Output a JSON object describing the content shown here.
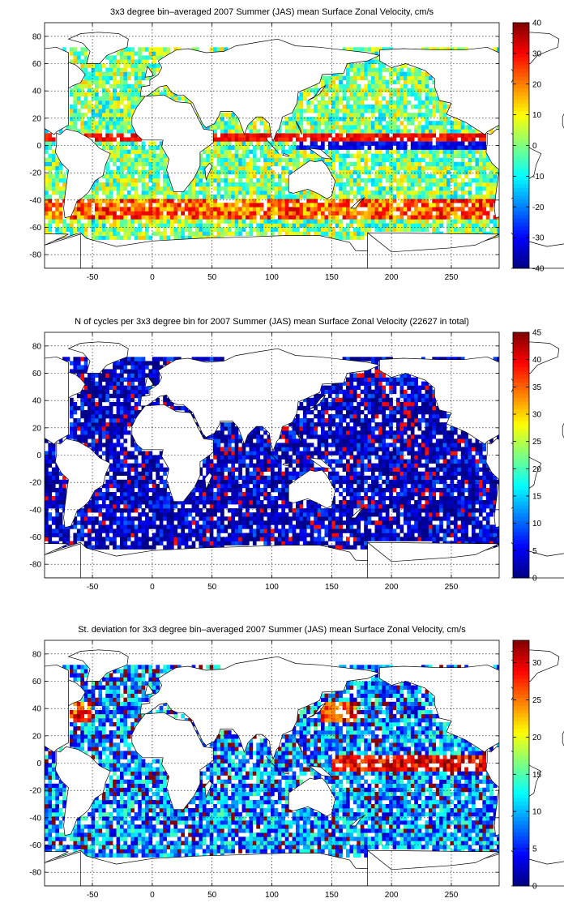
{
  "figure": {
    "colors": {
      "background": "#ffffff",
      "land": "#ffffff",
      "coastline": "#000000"
    },
    "colormap": "jet"
  },
  "chart_data": [
    {
      "type": "heatmap",
      "id": "mean",
      "title": "3x3 degree bin–averaged 2007 Summer (JAS) mean Surface Zonal Velocity, cm/s",
      "x_ticks": [
        -50,
        0,
        50,
        100,
        150,
        200,
        250
      ],
      "y_ticks": [
        80,
        60,
        40,
        20,
        0,
        -20,
        -40,
        -60,
        -80
      ],
      "xlim": [
        -90,
        290
      ],
      "ylim": [
        -90,
        90
      ],
      "bin_size_deg": 3,
      "grid": true,
      "colorbar": {
        "min": -40,
        "max": 40,
        "ticks": [
          40,
          30,
          20,
          10,
          0,
          -10,
          -20,
          -30,
          -40
        ],
        "position": "right"
      }
    },
    {
      "type": "heatmap",
      "id": "count",
      "title": "N of cycles per 3x3 degree bin for 2007 Summer (JAS) mean Surface Zonal Velocity (22627 in total)",
      "x_ticks": [
        -50,
        0,
        50,
        100,
        150,
        200,
        250
      ],
      "y_ticks": [
        80,
        60,
        40,
        20,
        0,
        -20,
        -40,
        -60,
        -80
      ],
      "xlim": [
        -90,
        290
      ],
      "ylim": [
        -90,
        90
      ],
      "bin_size_deg": 3,
      "grid": true,
      "colorbar": {
        "min": 0,
        "max": 45,
        "ticks": [
          45,
          40,
          35,
          30,
          25,
          20,
          15,
          10,
          5,
          0
        ],
        "position": "right"
      }
    },
    {
      "type": "heatmap",
      "id": "stdev",
      "title": "St. deviation for 3x3 degree bin–averaged 2007 Summer (JAS) mean Surface Zonal Velocity, cm/s",
      "x_ticks": [
        -50,
        0,
        50,
        100,
        150,
        200,
        250
      ],
      "y_ticks": [
        80,
        60,
        40,
        20,
        0,
        -20,
        -40,
        -60,
        -80
      ],
      "xlim": [
        -90,
        290
      ],
      "ylim": [
        -90,
        90
      ],
      "bin_size_deg": 3,
      "grid": true,
      "colorbar": {
        "min": 0,
        "max": 33,
        "ticks": [
          30,
          25,
          20,
          15,
          10,
          5,
          0
        ],
        "position": "right"
      }
    }
  ]
}
